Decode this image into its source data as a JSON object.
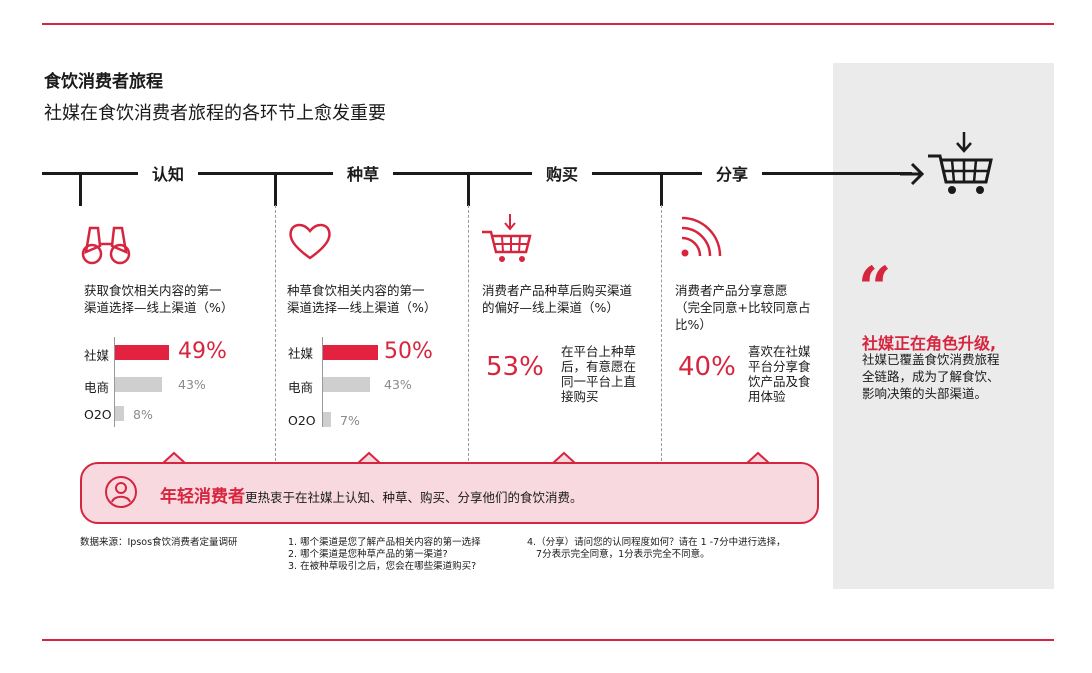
{
  "header": {
    "title": "食饮消费者旅程",
    "subtitle": "社媒在食饮消费者旅程的各环节上愈发重要"
  },
  "stages": [
    "认知",
    "种草",
    "购买",
    "分享"
  ],
  "panels": {
    "awareness": {
      "question": [
        "获取食饮相关内容的第一",
        "渠道选择—线上渠道（%）"
      ],
      "rows": [
        {
          "label": "社媒",
          "value": "49%"
        },
        {
          "label": "电商",
          "value": "43%"
        },
        {
          "label": "O2O",
          "value": "8%"
        }
      ]
    },
    "seeding": {
      "question": [
        "种草食饮相关内容的第一",
        "渠道选择—线上渠道（%）"
      ],
      "rows": [
        {
          "label": "社媒",
          "value": "50%"
        },
        {
          "label": "电商",
          "value": "43%"
        },
        {
          "label": "O2O",
          "value": "7%"
        }
      ]
    },
    "purchase": {
      "question": [
        "消费者产品种草后购买渠道",
        "的偏好—线上渠道（%）"
      ],
      "big_value": "53%",
      "desc": [
        "在平台上种草",
        "后，有意愿在",
        "同一平台上直",
        "接购买"
      ]
    },
    "sharing": {
      "question": [
        "消费者产品分享意愿",
        "（完全同意+比较同意占",
        "比%）"
      ],
      "big_value": "40%",
      "desc": [
        "喜欢在社媒",
        "平台分享食",
        "饮产品及食",
        "用体验"
      ]
    }
  },
  "chart_data": [
    {
      "type": "bar",
      "title": "获取食饮相关内容的第一渠道选择—线上渠道（%）",
      "categories": [
        "社媒",
        "电商",
        "O2O"
      ],
      "values": [
        49,
        43,
        8
      ],
      "ylim": [
        0,
        100
      ]
    },
    {
      "type": "bar",
      "title": "种草食饮相关内容的第一渠道选择—线上渠道（%）",
      "categories": [
        "社媒",
        "电商",
        "O2O"
      ],
      "values": [
        50,
        43,
        7
      ],
      "ylim": [
        0,
        100
      ]
    }
  ],
  "side": {
    "quote_mark": "“",
    "heading": "社媒正在角色升级,",
    "body": [
      "社媒已覆盖食饮消费旅程",
      "全链路，成为了解食饮、",
      "影响决策的头部渠道。"
    ]
  },
  "banner": {
    "highlight": "年轻消费者",
    "text": "更热衷于在社媒上认知、种草、购买、分享他们的食饮消费。"
  },
  "footer": {
    "source": "数据来源：Ipsos食饮消费者定量调研",
    "notes_a": [
      "1.  哪个渠道是您了解产品相关内容的第一选择",
      "2.  哪个渠道是您种草产品的第一渠道?",
      "3.  在被种草吸引之后，您会在哪些渠道购买?"
    ],
    "notes_b": [
      "4.（分享）请问您的认同程度如何？请在 1 -7分中进行选择，",
      "   7分表示完全同意，1分表示完全不同意。"
    ]
  },
  "colors": {
    "accent": "#d6263f",
    "bar_primary": "#e2223f",
    "bar_secondary": "#cfcfcf",
    "panel": "#ebebeb",
    "banner_bg": "#f7d9df"
  },
  "icons": [
    "binoculars-icon",
    "heart-icon",
    "shopping-cart-icon",
    "share-signal-icon",
    "quote-icon",
    "user-icon",
    "arrow-right-icon"
  ]
}
